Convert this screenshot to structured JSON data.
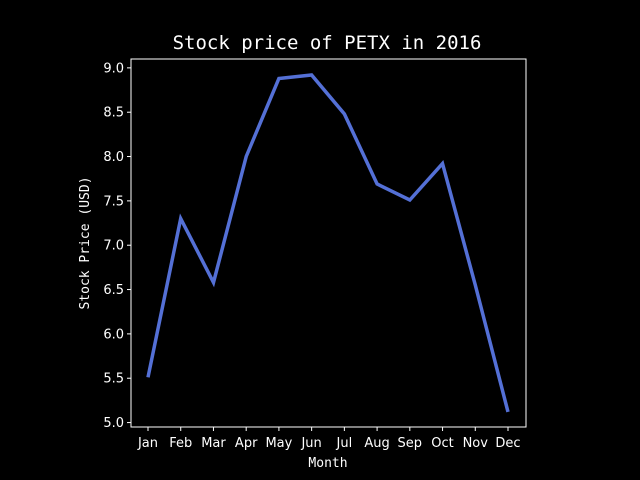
{
  "chart_data": {
    "type": "line",
    "title": "Stock price of PETX in 2016",
    "xlabel": "Month",
    "ylabel": "Stock Price (USD)",
    "categories": [
      "Jan",
      "Feb",
      "Mar",
      "Apr",
      "May",
      "Jun",
      "Jul",
      "Aug",
      "Sep",
      "Oct",
      "Nov",
      "Dec"
    ],
    "series": [
      {
        "values": [
          5.51,
          7.3,
          6.58,
          8.0,
          8.88,
          8.92,
          8.48,
          7.69,
          7.51,
          7.92,
          6.55,
          5.12
        ],
        "color": "#5470d6"
      }
    ],
    "ylim": [
      4.95,
      9.1
    ],
    "yticks": [
      "5.0",
      "5.5",
      "6.0",
      "6.5",
      "7.0",
      "7.5",
      "8.0",
      "8.5",
      "9.0"
    ],
    "grid": false,
    "background": "#000000",
    "axis_color": "#ffffff"
  }
}
